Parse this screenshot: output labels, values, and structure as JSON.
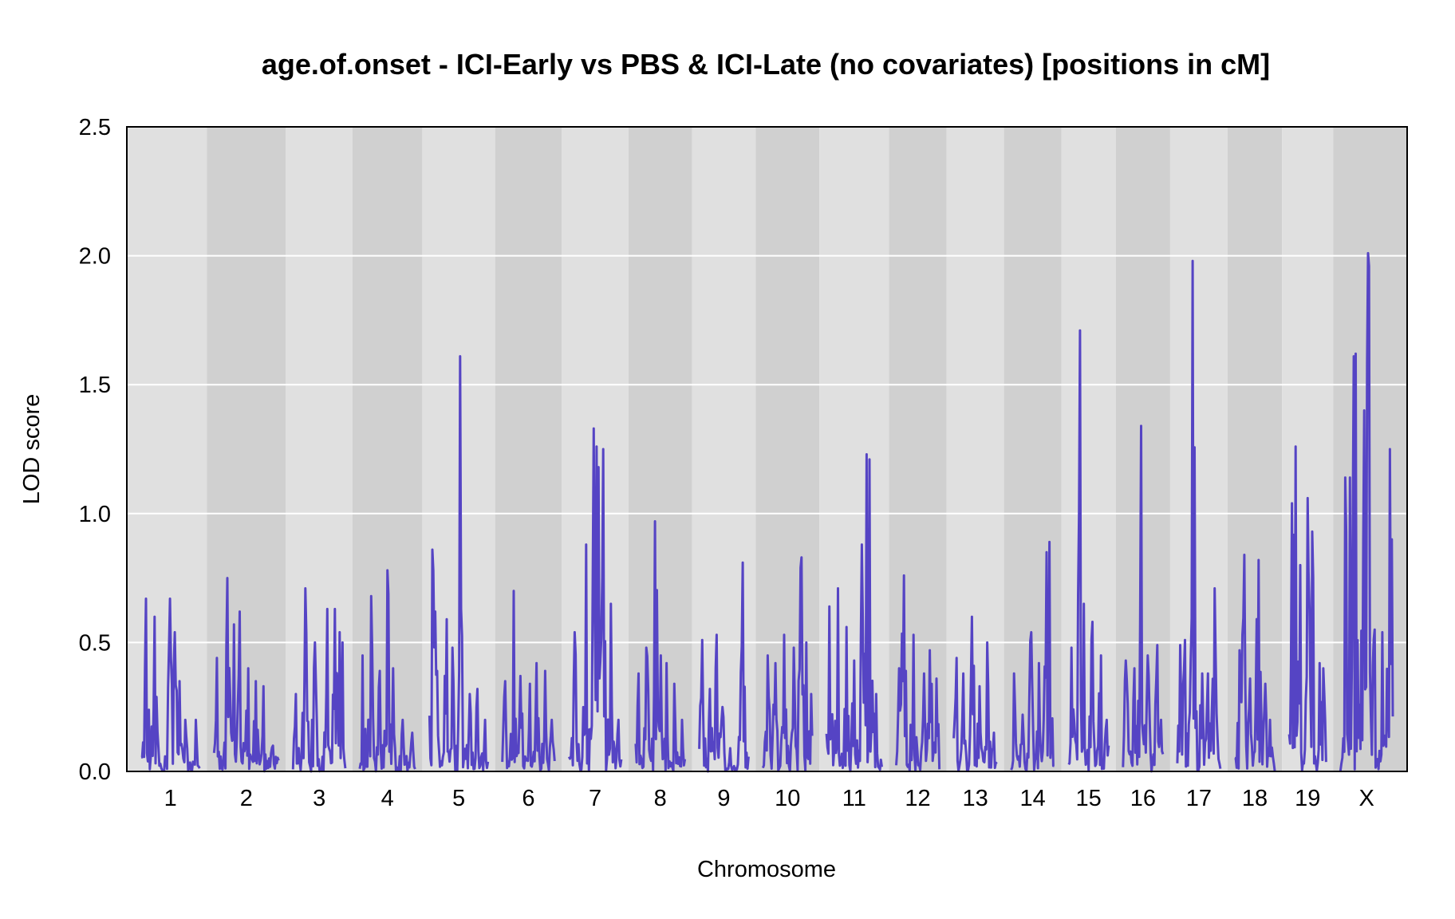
{
  "chart_data": {
    "type": "line",
    "title": "age.of.onset - ICI-Early vs PBS & ICI-Late (no covariates) [positions in cM]",
    "xlabel": "Chromosome",
    "ylabel": "LOD score",
    "ylim": [
      0,
      2.5
    ],
    "yticks": [
      "0.0",
      "0.5",
      "1.0",
      "1.5",
      "2.0",
      "2.5"
    ],
    "grid": true,
    "colors": {
      "line": "#5544c4",
      "band_light": "#e0e0e0",
      "band_dark": "#d0d0d0",
      "gridline": "#ffffff"
    },
    "chromosomes": [
      {
        "label": "1",
        "length_cM": 95,
        "peaks": [
          [
            8,
            0.67
          ],
          [
            22,
            0.6
          ],
          [
            47,
            0.67
          ],
          [
            55,
            0.54
          ],
          [
            62,
            0.35
          ],
          [
            72,
            0.2
          ],
          [
            88,
            0.2
          ]
        ]
      },
      {
        "label": "2",
        "length_cM": 105,
        "peaks": [
          [
            5,
            0.44
          ],
          [
            22,
            0.75
          ],
          [
            32,
            0.57
          ],
          [
            42,
            0.62
          ],
          [
            55,
            0.4
          ],
          [
            68,
            0.35
          ],
          [
            80,
            0.33
          ],
          [
            95,
            0.1
          ]
        ]
      },
      {
        "label": "3",
        "length_cM": 85,
        "peaks": [
          [
            5,
            0.3
          ],
          [
            20,
            0.71
          ],
          [
            35,
            0.5
          ],
          [
            55,
            0.63
          ],
          [
            68,
            0.63
          ],
          [
            75,
            0.54
          ],
          [
            80,
            0.5
          ]
        ]
      },
      {
        "label": "4",
        "length_cM": 90,
        "peaks": [
          [
            5,
            0.45
          ],
          [
            18,
            0.68
          ],
          [
            32,
            0.39
          ],
          [
            45,
            0.78
          ],
          [
            55,
            0.4
          ],
          [
            70,
            0.2
          ],
          [
            85,
            0.15
          ]
        ]
      },
      {
        "label": "5",
        "length_cM": 95,
        "peaks": [
          [
            5,
            0.86
          ],
          [
            10,
            0.62
          ],
          [
            28,
            0.59
          ],
          [
            38,
            0.48
          ],
          [
            50,
            1.61
          ],
          [
            65,
            0.3
          ],
          [
            78,
            0.32
          ],
          [
            90,
            0.2
          ]
        ]
      },
      {
        "label": "6",
        "length_cM": 85,
        "peaks": [
          [
            5,
            0.35
          ],
          [
            18,
            0.7
          ],
          [
            30,
            0.37
          ],
          [
            45,
            0.34
          ],
          [
            55,
            0.42
          ],
          [
            70,
            0.39
          ],
          [
            80,
            0.2
          ]
        ]
      },
      {
        "label": "7",
        "length_cM": 85,
        "peaks": [
          [
            10,
            0.54
          ],
          [
            28,
            0.88
          ],
          [
            40,
            1.33
          ],
          [
            45,
            1.26
          ],
          [
            48,
            1.18
          ],
          [
            55,
            1.25
          ],
          [
            68,
            0.65
          ],
          [
            80,
            0.2
          ]
        ]
      },
      {
        "label": "8",
        "length_cM": 80,
        "peaks": [
          [
            5,
            0.38
          ],
          [
            18,
            0.48
          ],
          [
            32,
            0.97
          ],
          [
            40,
            0.45
          ],
          [
            50,
            0.42
          ],
          [
            62,
            0.34
          ],
          [
            75,
            0.2
          ]
        ]
      },
      {
        "label": "9",
        "length_cM": 80,
        "peaks": [
          [
            5,
            0.51
          ],
          [
            18,
            0.32
          ],
          [
            28,
            0.53
          ],
          [
            38,
            0.25
          ],
          [
            50,
            0.09
          ],
          [
            70,
            0.81
          ]
        ]
      },
      {
        "label": "10",
        "length_cM": 80,
        "peaks": [
          [
            8,
            0.45
          ],
          [
            20,
            0.42
          ],
          [
            35,
            0.53
          ],
          [
            50,
            0.48
          ],
          [
            62,
            0.83
          ],
          [
            70,
            0.5
          ],
          [
            78,
            0.3
          ]
        ]
      },
      {
        "label": "11",
        "length_cM": 90,
        "peaks": [
          [
            5,
            0.64
          ],
          [
            18,
            0.71
          ],
          [
            32,
            0.56
          ],
          [
            45,
            0.43
          ],
          [
            58,
            0.88
          ],
          [
            65,
            1.23
          ],
          [
            70,
            1.21
          ],
          [
            80,
            0.3
          ]
        ]
      },
      {
        "label": "12",
        "length_cM": 70,
        "peaks": [
          [
            5,
            0.4
          ],
          [
            12,
            0.76
          ],
          [
            28,
            0.53
          ],
          [
            45,
            0.38
          ],
          [
            55,
            0.47
          ],
          [
            65,
            0.36
          ]
        ]
      },
      {
        "label": "13",
        "length_cM": 70,
        "peaks": [
          [
            5,
            0.44
          ],
          [
            15,
            0.38
          ],
          [
            30,
            0.6
          ],
          [
            42,
            0.33
          ],
          [
            55,
            0.5
          ],
          [
            65,
            0.15
          ]
        ]
      },
      {
        "label": "14",
        "length_cM": 70,
        "peaks": [
          [
            5,
            0.38
          ],
          [
            18,
            0.22
          ],
          [
            32,
            0.54
          ],
          [
            45,
            0.42
          ],
          [
            58,
            0.85
          ],
          [
            62,
            0.89
          ]
        ]
      },
      {
        "label": "15",
        "length_cM": 65,
        "peaks": [
          [
            5,
            0.48
          ],
          [
            18,
            1.71
          ],
          [
            25,
            0.65
          ],
          [
            38,
            0.58
          ],
          [
            52,
            0.45
          ],
          [
            62,
            0.2
          ]
        ]
      },
      {
        "label": "16",
        "length_cM": 65,
        "peaks": [
          [
            5,
            0.43
          ],
          [
            18,
            0.4
          ],
          [
            30,
            1.34
          ],
          [
            40,
            0.45
          ],
          [
            55,
            0.49
          ],
          [
            62,
            0.2
          ]
        ]
      },
      {
        "label": "17",
        "length_cM": 70,
        "peaks": [
          [
            5,
            0.49
          ],
          [
            12,
            0.51
          ],
          [
            25,
            1.98
          ],
          [
            40,
            0.38
          ],
          [
            50,
            0.38
          ],
          [
            60,
            0.71
          ]
        ]
      },
      {
        "label": "18",
        "length_cM": 65,
        "peaks": [
          [
            8,
            0.47
          ],
          [
            15,
            0.84
          ],
          [
            25,
            0.36
          ],
          [
            38,
            0.82
          ],
          [
            50,
            0.34
          ],
          [
            58,
            0.2
          ]
        ]
      },
      {
        "label": "19",
        "length_cM": 60,
        "peaks": [
          [
            5,
            1.04
          ],
          [
            10,
            1.26
          ],
          [
            18,
            0.8
          ],
          [
            30,
            1.06
          ],
          [
            38,
            0.93
          ],
          [
            50,
            0.42
          ],
          [
            55,
            0.4
          ]
        ]
      },
      {
        "label": "X",
        "length_cM": 85,
        "peaks": [
          [
            8,
            1.14
          ],
          [
            15,
            1.14
          ],
          [
            22,
            1.61
          ],
          [
            25,
            1.62
          ],
          [
            38,
            1.4
          ],
          [
            45,
            2.01
          ],
          [
            47,
            1.96
          ],
          [
            55,
            0.55
          ],
          [
            68,
            0.54
          ],
          [
            80,
            1.25
          ],
          [
            83,
            0.9
          ]
        ]
      }
    ]
  }
}
